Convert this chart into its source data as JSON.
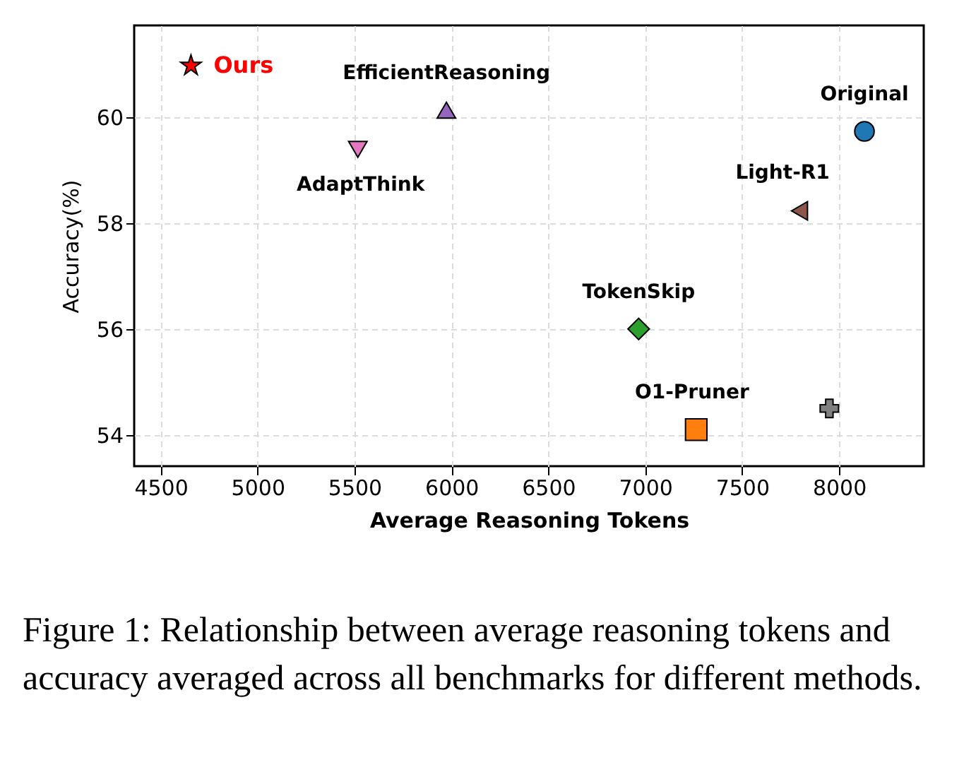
{
  "chart_data": {
    "type": "scatter",
    "xlabel": "Average Reasoning Tokens",
    "ylabel": "Accuracy(%)",
    "xlim": [
      4363,
      8437
    ],
    "xticks": [
      4500,
      5000,
      5500,
      6000,
      6500,
      7000,
      7500,
      8000
    ],
    "ylim": [
      53.41,
      61.73
    ],
    "yticks": [
      54,
      56,
      58,
      60
    ],
    "grid": true,
    "series": [
      {
        "name": "Ours",
        "color": "#ff0000",
        "marker": "star",
        "x": [
          4656
        ],
        "values": [
          60.97
        ]
      },
      {
        "name": "Original",
        "color": "#1f77b4",
        "marker": "circle",
        "x": [
          8131
        ],
        "values": [
          59.73
        ]
      },
      {
        "name": "EfficientReasoning",
        "color": "#9467bd",
        "marker": "triangle",
        "x": [
          5974
        ],
        "values": [
          60.13
        ]
      },
      {
        "name": "AdaptThink",
        "color": "#e377c2",
        "marker": "triangle-down",
        "x": [
          5517
        ],
        "values": [
          59.39
        ]
      },
      {
        "name": "Light-R1",
        "color": "#8c564b",
        "marker": "triangle-left",
        "x": [
          7796
        ],
        "values": [
          58.23
        ]
      },
      {
        "name": "TokenSkip",
        "color": "#2ca02c",
        "marker": "diamond",
        "x": [
          6966
        ],
        "values": [
          56.0
        ]
      },
      {
        "name": "O1-Pruner",
        "color": "#ff7f0e",
        "marker": "square",
        "x": [
          7263
        ],
        "values": [
          54.1
        ]
      },
      {
        "name": null,
        "color": "#7f7f7f",
        "marker": "cross",
        "x": [
          7950
        ],
        "values": [
          54.5
        ]
      }
    ],
    "annotations": [
      "Figure 1: Relationship between average reasoning tokens and accuracy averaged across all benchmarks for different methods."
    ]
  }
}
